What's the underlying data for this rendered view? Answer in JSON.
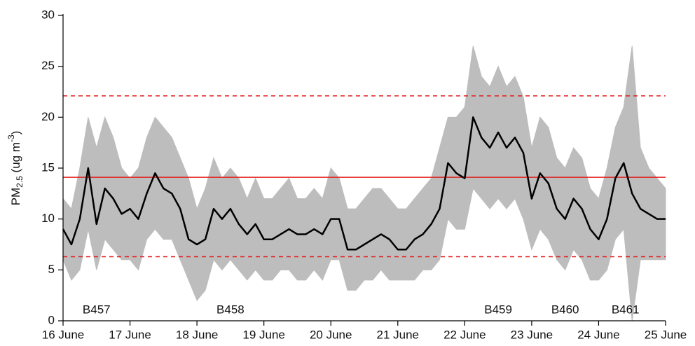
{
  "chart_data": {
    "type": "line",
    "y_label": {
      "text": "PM",
      "sub": "2.5",
      "mid": " (ug m",
      "sup": "-3",
      "end": ")"
    },
    "x": [
      16,
      16.125,
      16.25,
      16.375,
      16.5,
      16.625,
      16.75,
      16.875,
      17,
      17.125,
      17.25,
      17.375,
      17.5,
      17.625,
      17.75,
      17.875,
      18,
      18.125,
      18.25,
      18.375,
      18.5,
      18.625,
      18.75,
      18.875,
      19,
      19.125,
      19.25,
      19.375,
      19.5,
      19.625,
      19.75,
      19.875,
      20,
      20.125,
      20.25,
      20.375,
      20.5,
      20.625,
      20.75,
      20.875,
      21,
      21.125,
      21.25,
      21.375,
      21.5,
      21.625,
      21.75,
      21.875,
      22,
      22.125,
      22.25,
      22.375,
      22.5,
      22.625,
      22.75,
      22.875,
      23,
      23.125,
      23.25,
      23.375,
      23.5,
      23.625,
      23.75,
      23.875,
      24,
      24.125,
      24.25,
      24.375,
      24.5,
      24.625,
      24.75,
      24.875,
      25
    ],
    "band": {
      "color": "#bdbdbd",
      "upper": [
        12,
        11,
        15,
        20,
        17,
        20,
        18,
        15,
        14,
        15,
        18,
        20,
        19,
        18,
        16,
        14,
        11,
        13,
        16,
        14,
        15,
        14,
        12,
        14,
        12,
        12,
        13,
        14,
        12,
        12,
        13,
        12,
        15,
        14,
        11,
        11,
        12,
        13,
        13,
        12,
        11,
        11,
        12,
        13,
        14,
        17,
        20,
        20,
        21,
        27,
        24,
        23,
        25,
        23,
        24,
        22,
        17,
        20,
        19,
        16,
        15,
        17,
        16,
        13,
        12,
        15,
        19,
        21,
        27,
        17,
        15,
        14,
        13
      ],
      "lower": [
        6,
        4,
        5,
        9,
        5,
        8,
        7,
        6,
        6,
        5,
        8,
        9,
        8,
        8,
        6,
        4,
        2,
        3,
        6,
        5,
        6,
        5,
        4,
        5,
        4,
        4,
        5,
        5,
        4,
        4,
        5,
        4,
        6,
        6,
        3,
        3,
        4,
        4,
        5,
        4,
        4,
        4,
        4,
        5,
        5,
        6,
        10,
        9,
        9,
        13,
        12,
        11,
        12,
        11,
        12,
        10,
        7,
        9,
        8,
        6,
        5,
        7,
        6,
        4,
        4,
        5,
        8,
        9,
        0,
        6,
        6,
        6,
        6
      ]
    },
    "series": [
      {
        "color": "#000000",
        "values": [
          9,
          7.5,
          10,
          15,
          9.5,
          13,
          12,
          10.5,
          11,
          10,
          12.5,
          14.5,
          13,
          12.5,
          11,
          8,
          7.5,
          8,
          11,
          10,
          11,
          9.5,
          8.5,
          9.5,
          8,
          8,
          8.5,
          9,
          8.5,
          8.5,
          9,
          8.5,
          10,
          10,
          7,
          7,
          7.5,
          8,
          8.5,
          8,
          7,
          7,
          8,
          8.5,
          9.5,
          11,
          15.5,
          14.5,
          14,
          20,
          18,
          17,
          18.5,
          17,
          18,
          16.5,
          12,
          14.5,
          13.5,
          11,
          10,
          12,
          11,
          9,
          8,
          10,
          14,
          15.5,
          12.5,
          11,
          10.5,
          10,
          10
        ]
      }
    ],
    "hlines": [
      {
        "value": 22.1,
        "style": "dashed",
        "color": "#e0201f"
      },
      {
        "value": 14.1,
        "style": "solid",
        "color": "#e0201f"
      },
      {
        "value": 6.3,
        "style": "dashed",
        "color": "#e0201f"
      }
    ],
    "annotations": [
      {
        "text": "B457",
        "x": 16.5
      },
      {
        "text": "B458",
        "x": 18.5
      },
      {
        "text": "B459",
        "x": 22.5
      },
      {
        "text": "B460",
        "x": 23.5
      },
      {
        "text": "B461",
        "x": 24.4
      }
    ],
    "xlim": [
      16,
      25
    ],
    "xticks": [
      {
        "value": 16,
        "label": "16 June"
      },
      {
        "value": 17,
        "label": "17 June"
      },
      {
        "value": 18,
        "label": "18 June"
      },
      {
        "value": 19,
        "label": "19 June"
      },
      {
        "value": 20,
        "label": "20 June"
      },
      {
        "value": 21,
        "label": "21 June"
      },
      {
        "value": 22,
        "label": "22 June"
      },
      {
        "value": 23,
        "label": "23 June"
      },
      {
        "value": 24,
        "label": "24 June"
      },
      {
        "value": 25,
        "label": "25 June"
      }
    ],
    "ylim": [
      0,
      30
    ],
    "yticks": [
      0,
      5,
      10,
      15,
      20,
      25,
      30
    ]
  }
}
